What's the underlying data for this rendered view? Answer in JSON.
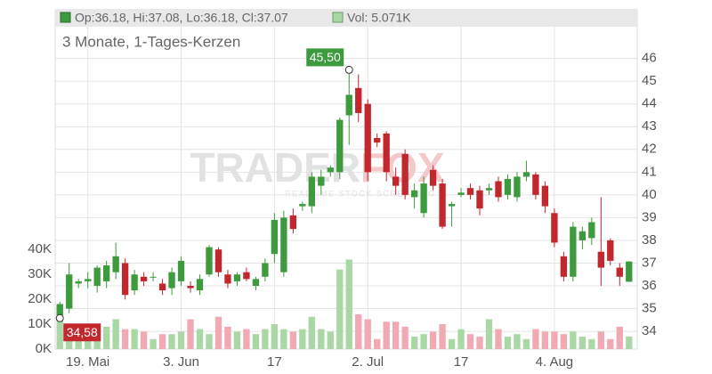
{
  "chart_data": {
    "type": "candlestick",
    "title": "3 Monate, 1-Tages-Kerzen",
    "legend": {
      "ohlc": "Op:36.18, Hi:37.08, Lo:36.18, Cl:37.07",
      "volume": "Vol: 5.071K"
    },
    "watermark": {
      "left": "TRADER",
      "right": "FOX",
      "sub": "REALTIME STOCK SCREENING"
    },
    "categories": [
      null,
      null,
      null,
      "19. Mai",
      null,
      null,
      null,
      null,
      null,
      null,
      null,
      null,
      null,
      "3. Jun",
      null,
      null,
      null,
      null,
      null,
      null,
      null,
      null,
      null,
      "17",
      null,
      null,
      null,
      null,
      null,
      null,
      null,
      null,
      null,
      "2. Jul",
      null,
      null,
      null,
      null,
      null,
      null,
      null,
      null,
      null,
      "17",
      null,
      null,
      null,
      null,
      null,
      null,
      null,
      null,
      null,
      "4. Aug",
      null,
      null,
      null,
      null,
      null,
      null,
      null,
      null
    ],
    "open": [
      34.7,
      35.0,
      36.1,
      36.2,
      36.0,
      36.2,
      36.6,
      37.0,
      35.8,
      36.4,
      36.4,
      36.1,
      35.9,
      36.2,
      36.0,
      35.8,
      36.5,
      37.6,
      36.5,
      36.2,
      36.6,
      36.0,
      36.4,
      37.4,
      36.6,
      39.1,
      39.5,
      39.5,
      40.4,
      41.0,
      41.0,
      43.5,
      44.7,
      44.0,
      42.5,
      42.7,
      40.8,
      41.8,
      39.9,
      39.2,
      41.1,
      40.5,
      39.5,
      40.0,
      40.3,
      40.2,
      40.2,
      40.6,
      40.0,
      39.9,
      40.8,
      40.9,
      40.4,
      39.2,
      37.3,
      36.4,
      38.0,
      38.1,
      37.5,
      38.0,
      36.8,
      36.18
    ],
    "high": [
      35.3,
      37.0,
      36.3,
      36.6,
      36.9,
      37.1,
      37.9,
      37.2,
      36.7,
      36.6,
      36.6,
      36.3,
      36.8,
      37.3,
      36.2,
      36.5,
      37.8,
      37.7,
      36.7,
      36.6,
      36.8,
      36.4,
      37.2,
      39.2,
      39.3,
      39.4,
      39.7,
      41.0,
      41.1,
      41.3,
      43.4,
      45.5,
      45.3,
      44.2,
      42.7,
      42.8,
      41.2,
      42.0,
      40.5,
      40.8,
      41.3,
      40.7,
      39.7,
      40.3,
      40.5,
      40.4,
      40.5,
      40.8,
      40.9,
      41.0,
      41.5,
      41.0,
      40.6,
      39.4,
      37.5,
      38.8,
      38.6,
      39.0,
      39.9,
      38.1,
      37.0,
      37.08
    ],
    "low": [
      34.58,
      34.8,
      35.9,
      35.9,
      35.7,
      35.9,
      36.3,
      35.4,
      35.6,
      36.0,
      36.2,
      35.6,
      35.6,
      36.0,
      35.7,
      35.6,
      36.4,
      36.4,
      35.9,
      36.0,
      36.2,
      35.8,
      36.2,
      37.0,
      36.4,
      38.3,
      39.3,
      39.2,
      40.0,
      40.8,
      40.7,
      42.2,
      43.2,
      40.6,
      42.1,
      40.6,
      40.0,
      39.8,
      39.4,
      39.0,
      40.2,
      38.5,
      38.6,
      39.9,
      39.8,
      39.1,
      40.0,
      39.7,
      39.8,
      39.7,
      40.6,
      39.8,
      39.2,
      37.7,
      36.2,
      36.2,
      37.6,
      37.8,
      36.0,
      36.9,
      36.0,
      36.18
    ],
    "close": [
      35.2,
      36.5,
      36.2,
      36.3,
      36.8,
      36.9,
      37.3,
      35.6,
      36.5,
      36.2,
      36.4,
      35.8,
      36.6,
      37.1,
      35.9,
      36.3,
      37.7,
      36.6,
      36.1,
      36.5,
      36.3,
      36.3,
      37.0,
      38.9,
      39.0,
      38.5,
      39.6,
      40.8,
      40.8,
      41.2,
      43.3,
      44.4,
      43.6,
      41.0,
      42.3,
      41.0,
      40.4,
      40.0,
      40.2,
      40.5,
      40.4,
      38.6,
      39.6,
      40.1,
      40.0,
      39.4,
      40.3,
      39.9,
      40.7,
      40.8,
      41.0,
      40.0,
      39.5,
      37.9,
      36.4,
      38.6,
      38.4,
      38.8,
      36.8,
      37.1,
      36.4,
      37.07
    ],
    "volume": [
      14,
      10,
      6,
      8,
      5,
      9,
      12,
      8,
      8,
      7,
      4,
      6,
      6,
      7,
      12,
      8,
      6,
      13,
      9,
      7,
      8,
      6,
      8,
      10,
      8,
      7,
      8,
      13,
      8,
      7,
      32,
      36,
      14,
      12,
      4,
      11,
      11,
      9,
      5,
      6,
      7,
      10,
      4,
      8,
      6,
      5,
      12,
      8,
      5,
      6,
      4,
      8,
      7,
      7,
      6,
      7,
      5,
      4,
      7,
      4,
      9,
      5.071
    ],
    "annotations": [
      {
        "value": 45.5,
        "label": "45,50"
      },
      {
        "value": 34.58,
        "label": "34,58"
      }
    ],
    "ylim": [
      33.22,
      48.1
    ],
    "yticks": [
      34,
      35,
      36,
      37,
      38,
      39,
      40,
      41,
      42,
      43,
      44,
      45,
      46
    ],
    "y2lim": [
      0,
      136
    ],
    "y2ticks": [
      {
        "value": 0,
        "label": "0K"
      },
      {
        "value": 10,
        "label": "10K"
      },
      {
        "value": 20,
        "label": "20K"
      },
      {
        "value": 30,
        "label": "30K"
      },
      {
        "value": 40,
        "label": "40K"
      }
    ],
    "colors": {
      "up": "#3d9b3d",
      "down": "#c2272d",
      "volume_up": "#a9d8a4",
      "volume_down": "#f1a9b4"
    },
    "grid": true
  }
}
